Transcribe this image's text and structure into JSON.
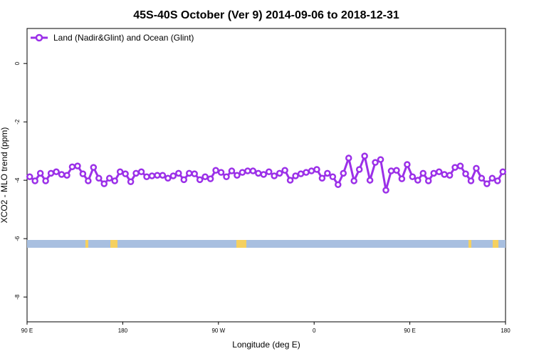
{
  "chart_data": {
    "type": "line",
    "title": "45S-40S October (Ver 9)   2014-09-06 to 2018-12-31",
    "x_label": "Longitude (deg E)",
    "y_label": "XCO2 - MLO trend (ppm)",
    "xlim": [
      90,
      540
    ],
    "ylim": [
      -8.85,
      1.2
    ],
    "xticks": [
      {
        "value": 90,
        "label": "90 E"
      },
      {
        "value": 180,
        "label": "180"
      },
      {
        "value": 270,
        "label": "90 W"
      },
      {
        "value": 360,
        "label": "0"
      },
      {
        "value": 450,
        "label": "90 E"
      },
      {
        "value": 540,
        "label": "180"
      }
    ],
    "yticks": [
      -8,
      -6,
      -4,
      -2,
      0
    ],
    "legend": "top-left",
    "x": [
      92.5,
      97.5,
      102.5,
      107.5,
      112.5,
      117.5,
      122.5,
      127.5,
      132.5,
      137.5,
      142.5,
      147.5,
      152.5,
      157.5,
      162.5,
      167.5,
      172.5,
      177.5,
      182.5,
      187.5,
      192.5,
      197.5,
      202.5,
      207.5,
      212.5,
      217.5,
      222.5,
      227.5,
      232.5,
      237.5,
      242.5,
      247.5,
      252.5,
      257.5,
      262.5,
      267.5,
      272.5,
      277.5,
      282.5,
      287.5,
      292.5,
      297.5,
      302.5,
      307.5,
      312.5,
      317.5,
      322.5,
      327.5,
      332.5,
      337.5,
      342.5,
      347.5,
      352.5,
      357.5,
      362.5,
      367.5,
      372.5,
      377.5,
      382.5,
      387.5,
      392.5,
      397.5,
      402.5,
      407.5,
      412.5,
      417.5,
      422.5,
      427.5,
      432.5,
      437.5,
      442.5,
      447.5,
      452.5,
      457.5,
      462.5,
      467.5,
      472.5,
      477.5,
      482.5,
      487.5,
      492.5,
      497.5,
      502.5,
      507.5,
      512.5,
      517.5,
      522.5,
      527.5,
      532.5,
      537.5
    ],
    "series": [
      {
        "name": "Land (Nadir&Glint) and Ocean (Glint)",
        "color": "#9b30e8",
        "values": [
          -3.88,
          -4.02,
          -3.76,
          -4.02,
          -3.76,
          -3.71,
          -3.8,
          -3.83,
          -3.54,
          -3.51,
          -3.78,
          -4.02,
          -3.56,
          -3.93,
          -4.12,
          -3.93,
          -4.02,
          -3.71,
          -3.78,
          -4.05,
          -3.76,
          -3.71,
          -3.88,
          -3.85,
          -3.83,
          -3.83,
          -3.93,
          -3.85,
          -3.76,
          -3.98,
          -3.76,
          -3.78,
          -3.98,
          -3.88,
          -3.95,
          -3.66,
          -3.73,
          -3.88,
          -3.68,
          -3.83,
          -3.73,
          -3.68,
          -3.68,
          -3.76,
          -3.8,
          -3.71,
          -3.85,
          -3.76,
          -3.66,
          -4.0,
          -3.85,
          -3.78,
          -3.73,
          -3.68,
          -3.63,
          -3.93,
          -3.76,
          -3.88,
          -4.15,
          -3.76,
          -3.24,
          -4.02,
          -3.63,
          -3.17,
          -4.0,
          -3.39,
          -3.29,
          -4.34,
          -3.68,
          -3.66,
          -3.95,
          -3.46,
          -3.88,
          -4.0,
          -3.76,
          -4.02,
          -3.76,
          -3.71,
          -3.8,
          -3.83,
          -3.56,
          -3.51,
          -3.78,
          -4.02,
          -3.59,
          -3.93,
          -4.12,
          -3.93,
          -4.02,
          -3.71
        ]
      }
    ]
  }
}
